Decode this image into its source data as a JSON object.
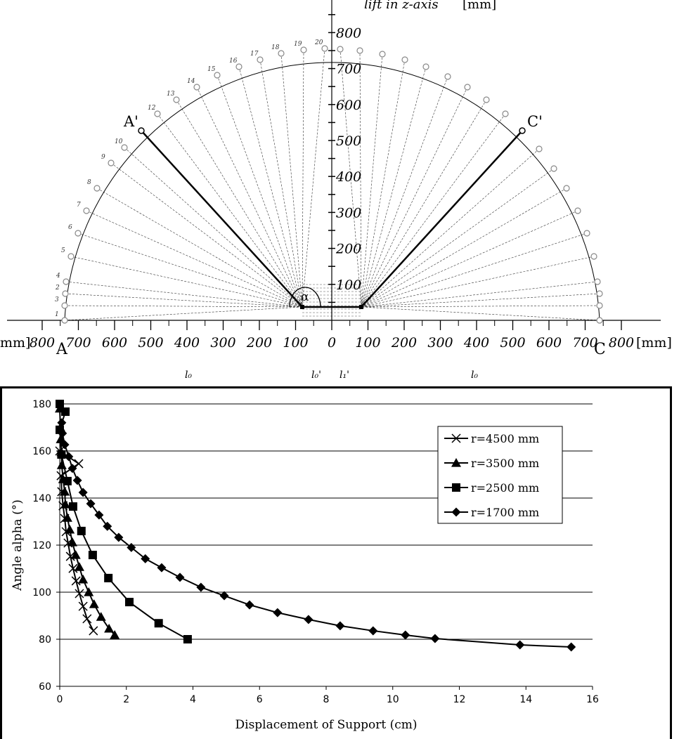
{
  "diagram": {
    "z_axis_label": "lift in z-axis",
    "z_axis_unit": "[mm]",
    "z_ticks": [
      "100",
      "200",
      "300",
      "400",
      "500",
      "600",
      "700",
      "800"
    ],
    "x_ticks": [
      "800",
      "700",
      "600",
      "500",
      "400",
      "300",
      "200",
      "100",
      "0",
      "100",
      "200",
      "300",
      "400",
      "500",
      "600",
      "700",
      "800"
    ],
    "unit_left": "mm]",
    "unit_right": "[mm]",
    "point_A": "A",
    "point_C": "C",
    "point_A_prime": "A'",
    "point_C_prime": "C'",
    "angle_symbol": "α",
    "left_point_numbers": [
      "1",
      "3",
      "2",
      "4",
      "5",
      "6",
      "7",
      "8",
      "9",
      "10",
      "",
      "12",
      "13",
      "14",
      "15",
      "16",
      "17",
      "18",
      "19",
      "20"
    ],
    "lengths": [
      "l₀",
      "l₀'",
      "l₁'",
      "l₀"
    ]
  },
  "chart_data": {
    "type": "line",
    "xlabel": "Displacement of Support (cm)",
    "ylabel": "Angle alpha (°)",
    "xlim": [
      0,
      16
    ],
    "ylim": [
      60,
      180
    ],
    "x_ticks": [
      0,
      2,
      4,
      6,
      8,
      10,
      12,
      14,
      16
    ],
    "y_ticks": [
      60,
      80,
      100,
      120,
      140,
      160,
      180
    ],
    "grid": "horizontal",
    "legend_placement": "top-right",
    "series": [
      {
        "name": "r=4500 mm",
        "marker": "x",
        "points": [
          [
            0,
            160
          ],
          [
            0.57,
            154.6
          ],
          [
            0.04,
            149.5
          ],
          [
            0.06,
            142.7
          ],
          [
            0.1,
            136.7
          ],
          [
            0.15,
            131.3
          ],
          [
            0.19,
            125.7
          ],
          [
            0.25,
            120.9
          ],
          [
            0.32,
            115.2
          ],
          [
            0.4,
            110.1
          ],
          [
            0.49,
            104.8
          ],
          [
            0.59,
            99.4
          ],
          [
            0.7,
            94
          ],
          [
            0.82,
            88.7
          ],
          [
            1.01,
            83.6
          ]
        ]
      },
      {
        "name": "r=3500 mm",
        "marker": "triangle",
        "points": [
          [
            0,
            178
          ],
          [
            0.02,
            170
          ],
          [
            0.03,
            165
          ],
          [
            0.05,
            159.5
          ],
          [
            0.06,
            154
          ],
          [
            0.1,
            148
          ],
          [
            0.15,
            142.7
          ],
          [
            0.17,
            137.3
          ],
          [
            0.23,
            131.6
          ],
          [
            0.3,
            126.6
          ],
          [
            0.38,
            121.2
          ],
          [
            0.48,
            115.8
          ],
          [
            0.59,
            110.7
          ],
          [
            0.7,
            105.4
          ],
          [
            0.87,
            100
          ],
          [
            1.03,
            94.9
          ],
          [
            1.24,
            89.5
          ],
          [
            1.48,
            84.5
          ],
          [
            1.65,
            81.8
          ]
        ]
      },
      {
        "name": "r=2500 mm",
        "marker": "square",
        "points": [
          [
            0,
            180
          ],
          [
            0.17,
            176.7
          ],
          [
            0,
            169
          ],
          [
            0.05,
            158.5
          ],
          [
            0.23,
            147.2
          ],
          [
            0.4,
            136.4
          ],
          [
            0.65,
            126
          ],
          [
            0.99,
            115.8
          ],
          [
            1.46,
            106
          ],
          [
            2.09,
            95.8
          ],
          [
            2.97,
            86.8
          ],
          [
            3.84,
            80
          ]
        ]
      },
      {
        "name": "r=1700 mm",
        "marker": "diamond",
        "points": [
          [
            0.06,
            172
          ],
          [
            0.08,
            167.5
          ],
          [
            0.15,
            162.7
          ],
          [
            0.27,
            157.6
          ],
          [
            0.38,
            152.6
          ],
          [
            0.53,
            147.5
          ],
          [
            0.7,
            142.4
          ],
          [
            0.93,
            137.6
          ],
          [
            1.18,
            132.8
          ],
          [
            1.43,
            128
          ],
          [
            1.77,
            123.3
          ],
          [
            2.15,
            119
          ],
          [
            2.57,
            114.2
          ],
          [
            3.06,
            110.4
          ],
          [
            3.61,
            106.3
          ],
          [
            4.24,
            102.1
          ],
          [
            4.94,
            98.5
          ],
          [
            5.7,
            94.6
          ],
          [
            6.54,
            91.3
          ],
          [
            7.47,
            88.4
          ],
          [
            8.42,
            85.7
          ],
          [
            9.41,
            83.6
          ],
          [
            10.38,
            81.8
          ],
          [
            11.27,
            80.3
          ],
          [
            13.82,
            77.6
          ],
          [
            15.36,
            76.7
          ]
        ]
      }
    ]
  }
}
